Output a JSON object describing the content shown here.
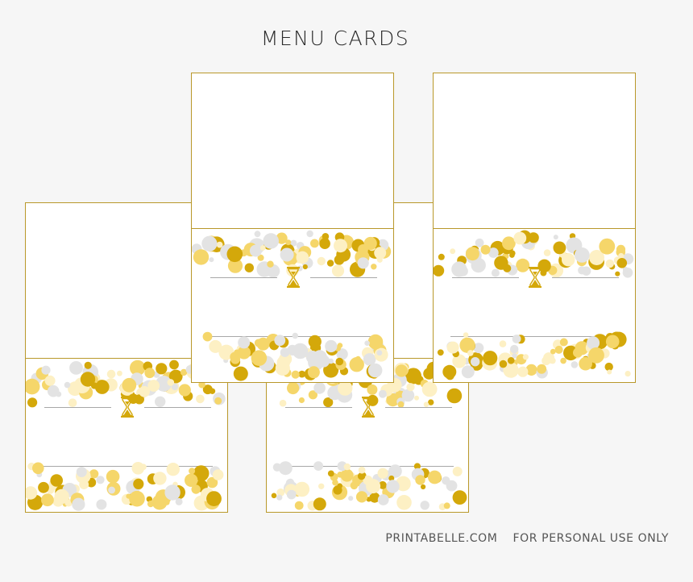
{
  "header": {
    "title": "MENU CARDS"
  },
  "footer": {
    "site": "PRINTABELLE.COM",
    "license": "FOR PERSONAL USE ONLY"
  },
  "colors": {
    "background": "#f6f6f6",
    "border_gold": "#b9982a",
    "dot_dark_gold": "#d4a80a",
    "dot_gold": "#f5d66a",
    "dot_light_gold": "#fdf0c4",
    "dot_grey": "#e3e3e3",
    "rule_grey": "#a8a8a8",
    "icon_gold": "#d4a80a"
  },
  "cards": [
    {
      "id": "card-bottom-left",
      "icon": "hourglass-icon"
    },
    {
      "id": "card-bottom-middle",
      "icon": "hourglass-icon"
    },
    {
      "id": "card-top-middle",
      "icon": "hourglass-icon"
    },
    {
      "id": "card-top-right",
      "icon": "hourglass-icon"
    }
  ]
}
